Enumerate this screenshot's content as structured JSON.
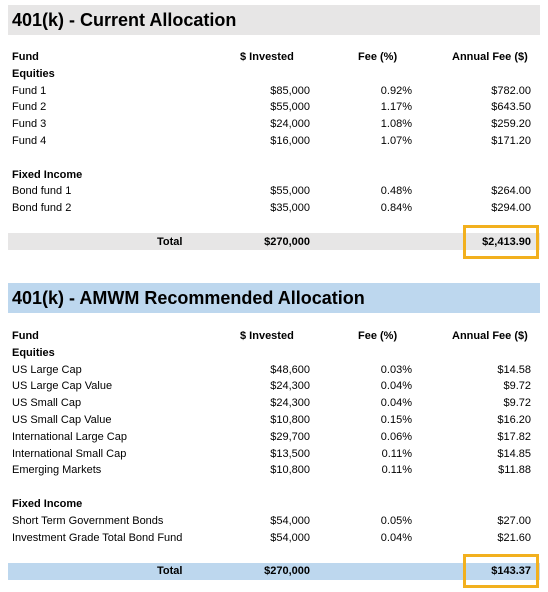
{
  "sections": [
    {
      "title": "401(k) - Current Allocation",
      "columns": [
        "Fund",
        "$ Invested",
        "Fee (%)",
        "Annual Fee ($)"
      ],
      "groups": [
        {
          "label": "Equities",
          "rows": [
            [
              "Fund 1",
              "$85,000",
              "0.92%",
              "$782.00"
            ],
            [
              "Fund 2",
              "$55,000",
              "1.17%",
              "$643.50"
            ],
            [
              "Fund 3",
              "$24,000",
              "1.08%",
              "$259.20"
            ],
            [
              "Fund 4",
              "$16,000",
              "1.07%",
              "$171.20"
            ]
          ]
        },
        {
          "label": "Fixed Income",
          "rows": [
            [
              "Bond fund 1",
              "$55,000",
              "0.48%",
              "$264.00"
            ],
            [
              "Bond fund 2",
              "$35,000",
              "0.84%",
              "$294.00"
            ]
          ]
        }
      ],
      "total": {
        "label": "Total",
        "invested": "$270,000",
        "annual_fee": "$2,413.90"
      }
    },
    {
      "title": "401(k) - AMWM Recommended Allocation",
      "columns": [
        "Fund",
        "$ Invested",
        "Fee (%)",
        "Annual Fee ($)"
      ],
      "groups": [
        {
          "label": "Equities",
          "rows": [
            [
              "US Large Cap",
              "$48,600",
              "0.03%",
              "$14.58"
            ],
            [
              "US Large Cap Value",
              "$24,300",
              "0.04%",
              "$9.72"
            ],
            [
              "US Small Cap",
              "$24,300",
              "0.04%",
              "$9.72"
            ],
            [
              "US Small Cap Value",
              "$10,800",
              "0.15%",
              "$16.20"
            ],
            [
              "International Large Cap",
              "$29,700",
              "0.06%",
              "$17.82"
            ],
            [
              "International Small Cap",
              "$13,500",
              "0.11%",
              "$14.85"
            ],
            [
              "Emerging Markets",
              "$10,800",
              "0.11%",
              "$11.88"
            ]
          ]
        },
        {
          "label": "Fixed Income",
          "rows": [
            [
              "Short Term Government Bonds",
              "$54,000",
              "0.05%",
              "$27.00"
            ],
            [
              "Investment Grade Total Bond Fund",
              "$54,000",
              "0.04%",
              "$21.60"
            ]
          ]
        }
      ],
      "total": {
        "label": "Total",
        "invested": "$270,000",
        "annual_fee": "$143.37"
      }
    }
  ]
}
